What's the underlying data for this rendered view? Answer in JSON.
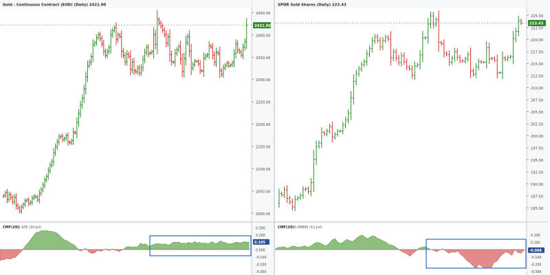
{
  "colors": {
    "up": "#2e8b2e",
    "down": "#d62f2f",
    "cmf_pos": "#8fbf7c",
    "cmf_neg": "#e48a8a",
    "highlight_box": "#3b73c9",
    "price_badge": "#2f8a2f"
  },
  "chart_data": [
    {
      "type": "bar",
      "subtype": "ohlc",
      "title": "Gold - Continuous Contract (EOD) (Daily) 2421.90",
      "last_price": "2421.90",
      "ylim": [
        1985,
        2460
      ],
      "y_ticks": [
        "2450.00",
        "2400.00",
        "2350.00",
        "2300.00",
        "2250.00",
        "2200.00",
        "2150.00",
        "2100.00",
        "2050.00",
        "2000.00"
      ],
      "close": [
        2040,
        2046,
        2031,
        2042,
        2035,
        2026,
        2036,
        2018,
        2012,
        2005,
        2014,
        2020,
        2028,
        2030,
        2022,
        2025,
        2034,
        2038,
        2036,
        2030,
        2045,
        2053,
        2063,
        2075,
        2083,
        2096,
        2108,
        2116,
        2136,
        2149,
        2160,
        2171,
        2173,
        2165,
        2168,
        2174,
        2160,
        2158,
        2163,
        2182,
        2180,
        2204,
        2224,
        2243,
        2258,
        2279,
        2306,
        2331,
        2339,
        2351,
        2378,
        2383,
        2394,
        2401,
        2392,
        2380,
        2363,
        2354,
        2363,
        2372,
        2400,
        2410,
        2416,
        2390,
        2400,
        2396,
        2364,
        2354,
        2340,
        2357,
        2352,
        2323,
        2339,
        2320,
        2317,
        2326,
        2315,
        2327,
        2345,
        2361,
        2372,
        2358,
        2360,
        2363,
        2401,
        2379,
        2434,
        2427,
        2420,
        2411,
        2401,
        2382,
        2396,
        2356,
        2340,
        2339,
        2359,
        2367,
        2374,
        2346,
        2318,
        2347,
        2383,
        2396,
        2364,
        2326,
        2334,
        2341,
        2341,
        2335,
        2320,
        2319,
        2348,
        2353,
        2356,
        2376,
        2373,
        2355,
        2339,
        2361,
        2358,
        2320,
        2312,
        2326,
        2332,
        2337,
        2331,
        2333,
        2338,
        2358,
        2380,
        2366,
        2362,
        2355,
        2372,
        2385,
        2421.9
      ],
      "cmf": {
        "label": "CMF(20)",
        "value": "0.105 (10 Jul)",
        "last": "0.105",
        "ylim": [
          -0.35,
          0.35
        ],
        "y_ticks": [
          "0.300",
          "0.200",
          "0.100",
          "0.000",
          "-0.100",
          "-0.200",
          "-0.300"
        ],
        "values": [
          -0.15,
          -0.14,
          -0.14,
          -0.12,
          -0.13,
          -0.13,
          -0.11,
          -0.11,
          -0.08,
          -0.05,
          -0.02,
          0.02,
          0.06,
          0.09,
          0.13,
          0.17,
          0.21,
          0.24,
          0.24,
          0.26,
          0.26,
          0.26,
          0.26,
          0.25,
          0.25,
          0.24,
          0.23,
          0.21,
          0.18,
          0.15,
          0.13,
          0.12,
          0.1,
          0.08,
          0.07,
          0.04,
          0.01,
          -0.02,
          -0.01,
          0.01,
          0.01,
          -0.03,
          -0.05,
          -0.05,
          -0.04,
          -0.01,
          -0.02,
          -0.02,
          0.0,
          0.01,
          -0.01,
          -0.01,
          0.01,
          -0.01,
          -0.01,
          -0.03,
          -0.01,
          0.0,
          0.03,
          0.04,
          0.04,
          0.03,
          0.04,
          0.03,
          0.05,
          0.09,
          0.07,
          0.08,
          0.06,
          0.04,
          0.06,
          0.07,
          0.08,
          0.08,
          0.08,
          0.07,
          0.08,
          0.07,
          0.06,
          0.08,
          0.1,
          0.1,
          0.1,
          0.1,
          0.08,
          0.09,
          0.08,
          0.1,
          0.09,
          0.09,
          0.11,
          0.09,
          0.1,
          0.09,
          0.09,
          0.09,
          0.08,
          0.09,
          0.11,
          0.09,
          0.08,
          0.1,
          0.12,
          0.1,
          0.1,
          0.08,
          0.08,
          0.08,
          0.09,
          0.1,
          0.1,
          0.09,
          0.1,
          0.11,
          0.1,
          0.105
        ]
      }
    },
    {
      "type": "bar",
      "subtype": "ohlc",
      "title": "SPDR Gold Shares (Daily) 223.43",
      "last_price": "223.43",
      "ylim": [
        182.5,
        226.5
      ],
      "y_ticks": [
        "225.00",
        "222.50",
        "220.00",
        "217.50",
        "215.00",
        "212.50",
        "210.00",
        "207.50",
        "205.00",
        "202.50",
        "200.00",
        "197.50",
        "195.00",
        "192.50",
        "190.00",
        "187.50",
        "185.00"
      ],
      "close": [
        188.0,
        187.7,
        188.8,
        187.0,
        186.3,
        185.2,
        186.8,
        187.1,
        187.6,
        188.8,
        189.0,
        188.4,
        190.3,
        195.1,
        197.8,
        198.5,
        200.7,
        200.4,
        201.0,
        201.9,
        199.7,
        200.3,
        200.9,
        201.0,
        202.2,
        203.3,
        204.7,
        207.9,
        211.3,
        212.9,
        213.9,
        214.8,
        215.4,
        217.0,
        218.1,
        219.7,
        220.6,
        219.8,
        218.5,
        219.8,
        220.5,
        220.1,
        216.2,
        217.4,
        216.2,
        215.2,
        216.6,
        215.4,
        214.3,
        213.9,
        212.6,
        214.5,
        214.8,
        216.8,
        220.3,
        220.4,
        223.2,
        224.9,
        223.2,
        224.1,
        219.4,
        219.1,
        217.2,
        216.9,
        215.3,
        216.1,
        217.5,
        216.3,
        215.6,
        215.5,
        216.0,
        216.9,
        213.5,
        212.8,
        214.3,
        215.4,
        215.3,
        215.3,
        218.3,
        216.0,
        216.1,
        215.7,
        213.1,
        213.1,
        216.2,
        215.9,
        216.3,
        216.5,
        220.2,
        221.7,
        223.9,
        223.43
      ],
      "cmf": {
        "label": "CMF(20)",
        "value": "-0.00800 (11 Jul)",
        "last": "-0.008",
        "ylim": [
          -0.35,
          0.35
        ],
        "y_ticks": [
          "0.200",
          "0.100",
          "0.000",
          "-0.100",
          "-0.200",
          "-0.300"
        ],
        "values": [
          0.0,
          0.03,
          0.03,
          0.04,
          0.02,
          0.03,
          0.05,
          0.04,
          0.03,
          0.04,
          0.05,
          0.03,
          0.05,
          0.08,
          0.1,
          0.09,
          0.07,
          0.05,
          0.08,
          0.13,
          0.15,
          0.1,
          0.08,
          0.11,
          0.14,
          0.12,
          0.11,
          0.15,
          0.18,
          0.2,
          0.17,
          0.15,
          0.18,
          0.19,
          0.16,
          0.14,
          0.12,
          0.1,
          0.07,
          0.06,
          0.04,
          0.01,
          -0.02,
          -0.04,
          -0.06,
          -0.09,
          -0.05,
          -0.02,
          0.02,
          0.03,
          0.04,
          0.02,
          0.0,
          -0.01,
          -0.03,
          0.0,
          0.01,
          -0.02,
          -0.05,
          -0.03,
          -0.04,
          -0.02,
          -0.07,
          -0.1,
          -0.15,
          -0.18,
          -0.22,
          -0.26,
          -0.2,
          -0.23,
          -0.26,
          -0.24,
          -0.26,
          -0.18,
          -0.16,
          -0.1,
          -0.06,
          -0.03,
          -0.05,
          -0.08,
          0.0,
          -0.04,
          -0.05,
          -0.008
        ]
      }
    }
  ]
}
